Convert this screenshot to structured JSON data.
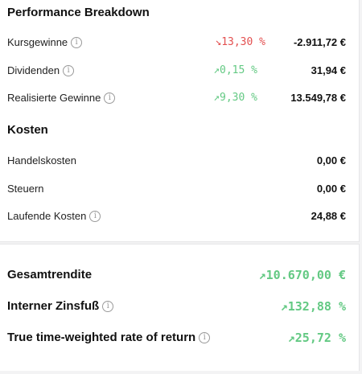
{
  "performance": {
    "title": "Performance Breakdown",
    "rows": [
      {
        "label": "Kursgewinne",
        "pct": "↘13,30 %",
        "amount": "-2.911,72 €"
      },
      {
        "label": "Dividenden",
        "pct": "↗0,15 %",
        "amount": "31,94 €"
      },
      {
        "label": "Realisierte Gewinne",
        "pct": "↗9,30 %",
        "amount": "13.549,78 €"
      }
    ]
  },
  "costs": {
    "title": "Kosten",
    "rows": [
      {
        "label": "Handelskosten",
        "amount": "0,00 €"
      },
      {
        "label": "Steuern",
        "amount": "0,00 €"
      },
      {
        "label": "Laufende Kosten",
        "amount": "24,88 €"
      }
    ]
  },
  "summary": {
    "rows": [
      {
        "label": "Gesamtrendite",
        "value": "↗10.670,00 €"
      },
      {
        "label": "Interner Zinsfuß",
        "value": "↗132,88 %"
      },
      {
        "label": "True time-weighted rate of return",
        "value": "↗25,72 %"
      }
    ]
  },
  "colors": {
    "negative": "#e35050",
    "positive": "#63c983"
  },
  "icons": {
    "info": "i"
  }
}
